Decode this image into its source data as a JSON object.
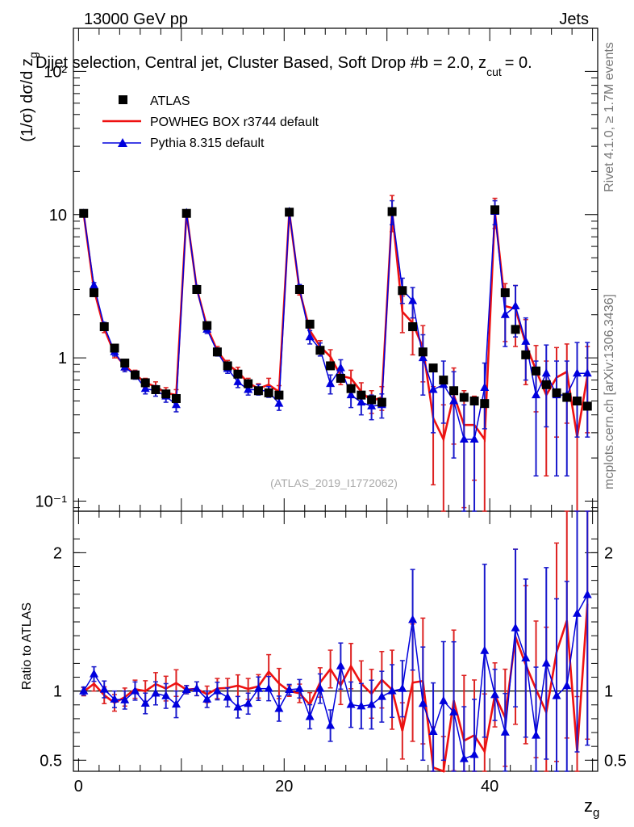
{
  "header": {
    "left": "13000 GeV pp",
    "right": "Jets",
    "selection": "Dijet selection, Central jet, Cluster Based, Soft Drop #b",
    "beta_text": "= 2.0, z",
    "cut_sub": "cut",
    "zcut_value": "= 0."
  },
  "side_labels": {
    "rivet": "Rivet 4.1.0, ≥ 1.7M events",
    "mcplots": "mcplots.cern.ch [arXiv:1306.3436]"
  },
  "watermark": "(ATLAS_2019_I1772062)",
  "colors": {
    "atlas": "#000000",
    "powheg": "#ee1111",
    "pythia": "#0000dd",
    "powheg_err": "#dd2222",
    "pythia_err": "#1a1acc"
  },
  "chart_data": {
    "type": "line",
    "title": "Dijet selection, Central jet, Cluster Based, Soft Drop",
    "xlabel": "z_g",
    "ylabel": "(1/σ) dσ/d z_g",
    "xlim": [
      -0.5,
      50.5
    ],
    "ylim": [
      0.085,
      200
    ],
    "yscale": "log",
    "ratio_ylabel": "Ratio to ATLAS",
    "ratio_ylim": [
      0.42,
      2.3
    ],
    "ratio_ticks": [
      "0.5",
      "1",
      "2"
    ],
    "x_ticks": [
      "0",
      "20",
      "40"
    ],
    "y_ticks": [
      "10⁻¹",
      "1",
      "10",
      "10²"
    ],
    "legend": [
      "ATLAS",
      "POWHEG BOX r3744 default",
      "Pythia 8.315 default"
    ],
    "x": [
      0.5,
      1.5,
      2.5,
      3.5,
      4.5,
      5.5,
      6.5,
      7.5,
      8.5,
      9.5,
      10.5,
      11.5,
      12.5,
      13.5,
      14.5,
      15.5,
      16.5,
      17.5,
      18.5,
      19.5,
      20.5,
      21.5,
      22.5,
      23.5,
      24.5,
      25.5,
      26.5,
      27.5,
      28.5,
      29.5,
      30.5,
      31.5,
      32.5,
      33.5,
      34.5,
      35.5,
      36.5,
      37.5,
      38.5,
      39.5,
      40.5,
      41.5,
      42.5,
      43.5,
      44.5,
      45.5,
      46.5,
      47.5,
      48.5,
      49.5
    ],
    "series": [
      {
        "name": "ATLAS",
        "values": [
          10.2,
          2.85,
          1.65,
          1.17,
          0.92,
          0.76,
          0.67,
          0.6,
          0.56,
          0.52,
          10.2,
          3.0,
          1.68,
          1.1,
          0.88,
          0.77,
          0.66,
          0.59,
          0.57,
          0.55,
          10.4,
          3.0,
          1.72,
          1.13,
          0.88,
          0.72,
          0.61,
          0.55,
          0.51,
          0.49,
          10.5,
          2.95,
          1.65,
          1.1,
          0.85,
          0.7,
          0.59,
          0.53,
          0.5,
          0.48,
          10.8,
          2.85,
          1.58,
          1.05,
          0.81,
          0.65,
          0.57,
          0.53,
          0.5,
          0.46
        ],
        "errors": []
      },
      {
        "name": "POWHEG BOX r3744 default",
        "values": [
          10.15,
          3.0,
          1.6,
          1.07,
          0.88,
          0.77,
          0.67,
          0.63,
          0.57,
          0.55,
          10.3,
          3.05,
          1.64,
          1.12,
          0.9,
          0.8,
          0.67,
          0.61,
          0.65,
          0.58,
          10.4,
          2.95,
          1.55,
          1.2,
          1.02,
          0.75,
          0.72,
          0.58,
          0.5,
          0.53,
          10.6,
          2.1,
          1.75,
          1.18,
          0.38,
          0.27,
          0.55,
          0.34,
          0.34,
          0.27,
          10.5,
          2.3,
          2.2,
          1.25,
          0.82,
          0.55,
          0.73,
          0.8,
          0.28,
          0.75
        ],
        "errors": [
          0.3,
          0.15,
          0.1,
          0.07,
          0.06,
          0.05,
          0.05,
          0.05,
          0.05,
          0.05,
          0.3,
          0.15,
          0.1,
          0.08,
          0.06,
          0.06,
          0.05,
          0.05,
          0.07,
          0.06,
          0.4,
          0.2,
          0.15,
          0.12,
          0.12,
          0.1,
          0.1,
          0.09,
          0.09,
          0.1,
          3.0,
          0.6,
          0.7,
          0.5,
          0.25,
          0.2,
          0.3,
          0.25,
          0.2,
          0.2,
          2.5,
          1.0,
          1.0,
          0.6,
          0.4,
          0.4,
          0.45,
          0.45,
          0.2,
          0.45
        ]
      },
      {
        "name": "Pythia 8.315 default",
        "values": [
          10.2,
          3.2,
          1.67,
          1.1,
          0.86,
          0.76,
          0.61,
          0.59,
          0.54,
          0.47,
          10.3,
          3.05,
          1.58,
          1.1,
          0.84,
          0.68,
          0.6,
          0.6,
          0.58,
          0.48,
          10.5,
          3.05,
          1.4,
          1.15,
          0.66,
          0.85,
          0.55,
          0.49,
          0.46,
          0.47,
          10.5,
          3.0,
          2.5,
          1.0,
          0.6,
          0.65,
          0.5,
          0.27,
          0.27,
          0.62,
          10.5,
          2.0,
          2.3,
          1.3,
          0.55,
          0.78,
          0.55,
          0.55,
          0.78,
          0.78
        ],
        "errors": [
          0.3,
          0.15,
          0.1,
          0.07,
          0.06,
          0.05,
          0.05,
          0.05,
          0.05,
          0.05,
          0.3,
          0.15,
          0.1,
          0.07,
          0.06,
          0.06,
          0.05,
          0.05,
          0.05,
          0.05,
          0.4,
          0.2,
          0.15,
          0.12,
          0.1,
          0.12,
          0.1,
          0.09,
          0.09,
          0.09,
          2.0,
          0.6,
          0.6,
          0.45,
          0.3,
          0.3,
          0.3,
          0.2,
          0.2,
          0.3,
          2.0,
          0.8,
          0.9,
          0.6,
          0.4,
          0.45,
          0.4,
          0.4,
          0.5,
          0.5
        ]
      }
    ]
  }
}
